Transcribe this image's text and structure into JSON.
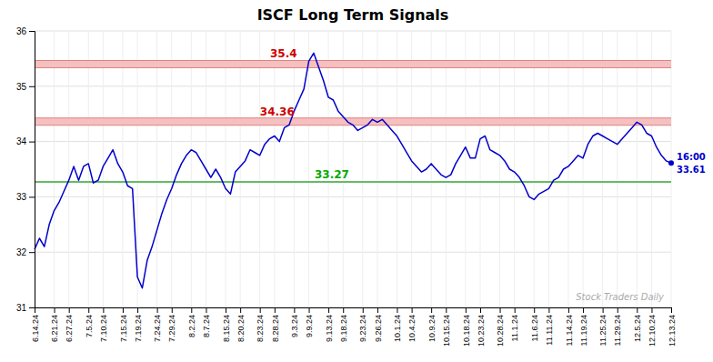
{
  "chart_data": {
    "type": "line",
    "title": "ISCF Long Term Signals",
    "categories": [
      "6.14.24",
      null,
      null,
      null,
      "6.21.24",
      null,
      null,
      "6.27.24",
      null,
      null,
      null,
      "7.5.24",
      null,
      null,
      "7.10.24",
      null,
      null,
      null,
      "7.15.24",
      null,
      null,
      "7.19.24",
      null,
      null,
      null,
      "7.24.24",
      null,
      null,
      "7.29.24",
      null,
      null,
      null,
      "8.2.24",
      null,
      null,
      "8.7.24",
      null,
      null,
      null,
      "8.15.24",
      null,
      null,
      "8.20.24",
      null,
      null,
      null,
      "8.23.24",
      null,
      null,
      "8.28.24",
      null,
      null,
      null,
      "9.3.24",
      null,
      null,
      "9.9.24",
      null,
      null,
      null,
      "9.13.24",
      null,
      null,
      "9.18.24",
      null,
      null,
      null,
      "9.23.24",
      null,
      null,
      "9.26.24",
      null,
      null,
      null,
      "10.1.24",
      null,
      null,
      "10.4.24",
      null,
      null,
      null,
      "10.9.24",
      null,
      null,
      "10.15.24",
      null,
      null,
      null,
      "10.18.24",
      null,
      null,
      "10.23.24",
      null,
      null,
      null,
      "10.28.24",
      null,
      null,
      "11.1.24",
      null,
      null,
      null,
      "11.6.24",
      null,
      null,
      "11.11.24",
      null,
      null,
      null,
      "11.14.24",
      null,
      null,
      "11.19.24",
      null,
      null,
      null,
      "11.25.24",
      null,
      null,
      "11.29.24",
      null,
      null,
      null,
      "12.5.24",
      null,
      null,
      "12.10.24",
      null,
      null,
      null,
      "12.13.24"
    ],
    "values": [
      32.05,
      32.25,
      32.1,
      32.5,
      32.75,
      32.9,
      33.1,
      33.3,
      33.55,
      33.3,
      33.55,
      33.6,
      33.25,
      33.3,
      33.55,
      33.7,
      33.85,
      33.6,
      33.45,
      33.2,
      33.15,
      31.55,
      31.35,
      31.85,
      32.1,
      32.4,
      32.7,
      32.95,
      33.15,
      33.4,
      33.6,
      33.75,
      33.85,
      33.8,
      33.65,
      33.5,
      33.35,
      33.5,
      33.35,
      33.15,
      33.05,
      33.45,
      33.55,
      33.65,
      33.85,
      33.8,
      33.75,
      33.95,
      34.05,
      34.1,
      34.0,
      34.25,
      34.3,
      34.55,
      34.75,
      34.95,
      35.45,
      35.6,
      35.35,
      35.1,
      34.8,
      34.75,
      34.55,
      34.45,
      34.35,
      34.3,
      34.2,
      34.25,
      34.3,
      34.4,
      34.35,
      34.4,
      34.3,
      34.2,
      34.1,
      33.95,
      33.8,
      33.65,
      33.55,
      33.45,
      33.5,
      33.6,
      33.5,
      33.4,
      33.35,
      33.4,
      33.6,
      33.75,
      33.9,
      33.7,
      33.7,
      34.05,
      34.1,
      33.85,
      33.8,
      33.75,
      33.65,
      33.5,
      33.45,
      33.35,
      33.2,
      33.0,
      32.95,
      33.05,
      33.1,
      33.15,
      33.3,
      33.35,
      33.5,
      33.55,
      33.65,
      33.75,
      33.7,
      33.95,
      34.1,
      34.15,
      34.1,
      34.05,
      34.0,
      33.95,
      34.05,
      34.15,
      34.25,
      34.35,
      34.3,
      34.15,
      34.1,
      33.9,
      33.75,
      33.65,
      33.61
    ],
    "color": "#0000cc",
    "ylim": [
      31,
      36
    ],
    "yticks": [
      31,
      32,
      33,
      34,
      35,
      36
    ],
    "grid": true,
    "reference_lines": [
      {
        "type": "band",
        "value": 35.4,
        "label": "35.4",
        "color": "#f5c0c0",
        "edge_color": "#e08080",
        "label_color": "#cc0000"
      },
      {
        "type": "band",
        "value": 34.36,
        "label": "34.36",
        "color": "#f5c0c0",
        "edge_color": "#e08080",
        "label_color": "#cc0000"
      },
      {
        "type": "line",
        "value": 33.27,
        "label": "33.27",
        "color": "#66bb66",
        "label_color": "#00aa00"
      }
    ],
    "end_label": {
      "time": "16:00",
      "color": "#0000cc"
    },
    "watermark": "Stock Traders Daily"
  }
}
